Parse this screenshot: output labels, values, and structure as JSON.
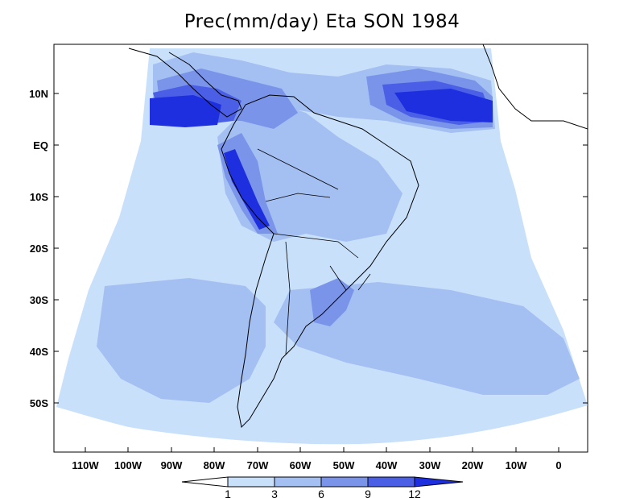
{
  "title": "Prec(mm/day) Eta SON 1984",
  "map": {
    "lat_labels": [
      "10N",
      "EQ",
      "10S",
      "20S",
      "30S",
      "40S",
      "50S"
    ],
    "lon_labels": [
      "110W",
      "100W",
      "90W",
      "80W",
      "70W",
      "60W",
      "50W",
      "40W",
      "30W",
      "20W",
      "10W",
      "0"
    ]
  },
  "colorbar": {
    "levels": [
      "1",
      "3",
      "6",
      "9",
      "12"
    ],
    "colors": [
      "#ffffff",
      "#c8e0fa",
      "#a4bff2",
      "#7a94ea",
      "#4a5fe6",
      "#1e2fe0"
    ]
  }
}
